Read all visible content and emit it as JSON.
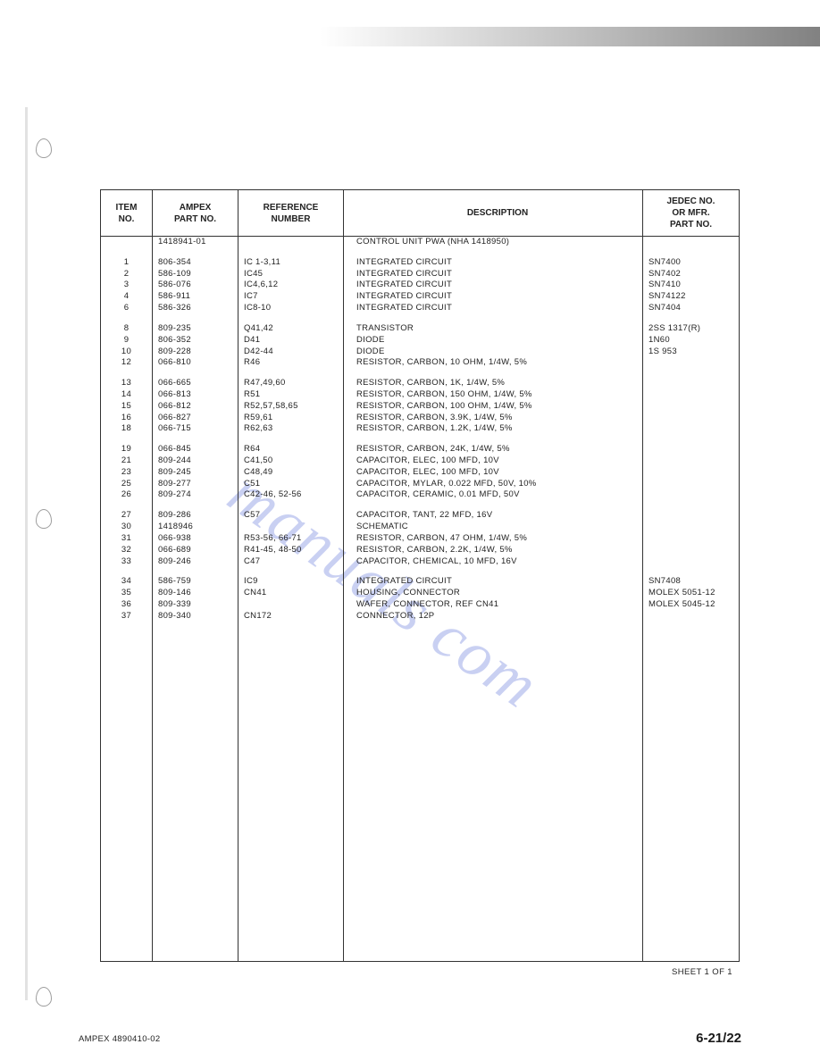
{
  "watermark_text": "manuals   com",
  "headers": {
    "item": "ITEM\nNO.",
    "part": "AMPEX\nPART NO.",
    "ref": "REFERENCE\nNUMBER",
    "desc": "DESCRIPTION",
    "jedec": "JEDEC NO.\nOR MFR.\nPART NO."
  },
  "title_row": {
    "part": "1418941-01",
    "desc": "CONTROL UNIT PWA (NHA 1418950)"
  },
  "groups": [
    [
      {
        "item": "1",
        "part": "806-354",
        "ref": "IC 1-3,11",
        "desc": "INTEGRATED CIRCUIT",
        "jedec": "SN7400"
      },
      {
        "item": "2",
        "part": "586-109",
        "ref": "IC45",
        "desc": "INTEGRATED CIRCUIT",
        "jedec": "SN7402"
      },
      {
        "item": "3",
        "part": "586-076",
        "ref": "IC4,6,12",
        "desc": "INTEGRATED CIRCUIT",
        "jedec": "SN7410"
      },
      {
        "item": "4",
        "part": "586-911",
        "ref": "IC7",
        "desc": "INTEGRATED CIRCUIT",
        "jedec": "SN74122"
      },
      {
        "item": "6",
        "part": "586-326",
        "ref": "IC8-10",
        "desc": "INTEGRATED CIRCUIT",
        "jedec": "SN7404"
      }
    ],
    [
      {
        "item": "8",
        "part": "809-235",
        "ref": "Q41,42",
        "desc": "TRANSISTOR",
        "jedec": "2SS 1317(R)"
      },
      {
        "item": "9",
        "part": "806-352",
        "ref": "D41",
        "desc": "DIODE",
        "jedec": "1N60"
      },
      {
        "item": "10",
        "part": "809-228",
        "ref": "D42-44",
        "desc": "DIODE",
        "jedec": "1S 953"
      },
      {
        "item": "12",
        "part": "066-810",
        "ref": "R46",
        "desc": "RESISTOR, CARBON, 10 OHM, 1/4W, 5%",
        "jedec": ""
      }
    ],
    [
      {
        "item": "13",
        "part": "066-665",
        "ref": "R47,49,60",
        "desc": "RESISTOR, CARBON, 1K, 1/4W, 5%",
        "jedec": ""
      },
      {
        "item": "14",
        "part": "066-813",
        "ref": "R51",
        "desc": "RESISTOR, CARBON, 150 OHM, 1/4W, 5%",
        "jedec": ""
      },
      {
        "item": "15",
        "part": "066-812",
        "ref": "R52,57,58,65",
        "desc": "RESISTOR, CARBON, 100 OHM, 1/4W, 5%",
        "jedec": ""
      },
      {
        "item": "16",
        "part": "066-827",
        "ref": "R59,61",
        "desc": "RESISTOR, CARBON, 3.9K, 1/4W, 5%",
        "jedec": ""
      },
      {
        "item": "18",
        "part": "066-715",
        "ref": "R62,63",
        "desc": "RESISTOR, CARBON, 1.2K, 1/4W, 5%",
        "jedec": ""
      }
    ],
    [
      {
        "item": "19",
        "part": "066-845",
        "ref": "R64",
        "desc": "RESISTOR, CARBON, 24K, 1/4W, 5%",
        "jedec": ""
      },
      {
        "item": "21",
        "part": "809-244",
        "ref": "C41,50",
        "desc": "CAPACITOR, ELEC, 100 MFD, 10V",
        "jedec": ""
      },
      {
        "item": "23",
        "part": "809-245",
        "ref": "C48,49",
        "desc": "CAPACITOR, ELEC, 100 MFD, 10V",
        "jedec": ""
      },
      {
        "item": "25",
        "part": "809-277",
        "ref": "C51",
        "desc": "CAPACITOR, MYLAR, 0.022 MFD, 50V, 10%",
        "jedec": ""
      },
      {
        "item": "26",
        "part": "809-274",
        "ref": "C42-46, 52-56",
        "desc": "CAPACITOR, CERAMIC, 0.01 MFD, 50V",
        "jedec": ""
      }
    ],
    [
      {
        "item": "27",
        "part": "809-286",
        "ref": "C57",
        "desc": "CAPACITOR, TANT, 22 MFD, 16V",
        "jedec": ""
      },
      {
        "item": "30",
        "part": "1418946",
        "ref": "",
        "desc": "SCHEMATIC",
        "jedec": ""
      },
      {
        "item": "31",
        "part": "066-938",
        "ref": "R53-56, 66-71",
        "desc": "RESISTOR, CARBON, 47 OHM, 1/4W, 5%",
        "jedec": ""
      },
      {
        "item": "32",
        "part": "066-689",
        "ref": "R41-45, 48-50",
        "desc": "RESISTOR, CARBON, 2.2K, 1/4W, 5%",
        "jedec": ""
      },
      {
        "item": "33",
        "part": "809-246",
        "ref": "C47",
        "desc": "CAPACITOR, CHEMICAL, 10 MFD, 16V",
        "jedec": ""
      }
    ],
    [
      {
        "item": "34",
        "part": "586-759",
        "ref": "IC9",
        "desc": "INTEGRATED CIRCUIT",
        "jedec": "SN7408"
      },
      {
        "item": "35",
        "part": "809-146",
        "ref": "CN41",
        "desc": "HOUSING, CONNECTOR",
        "jedec": "MOLEX 5051-12"
      },
      {
        "item": "36",
        "part": "809-339",
        "ref": "",
        "desc": "WAFER, CONNECTOR, REF CN41",
        "jedec": "MOLEX 5045-12"
      },
      {
        "item": "37",
        "part": "809-340",
        "ref": "CN172",
        "desc": "CONNECTOR, 12P",
        "jedec": ""
      }
    ]
  ],
  "sheet_label": "SHEET 1 OF 1",
  "footer_left": "AMPEX 4890410-02",
  "page_number": "6-21/22",
  "colors": {
    "text": "#222222",
    "border": "#333333",
    "watermark": "#7a8be0"
  }
}
